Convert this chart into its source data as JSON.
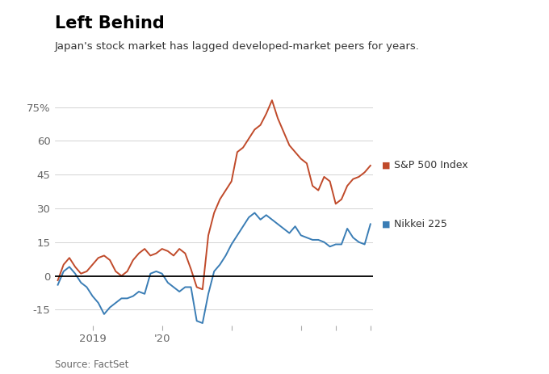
{
  "title": "Left Behind",
  "subtitle": "Japan's stock market has lagged developed-market peers for years.",
  "source": "Source: FactSet",
  "sp500_label": "S&P 500 Index",
  "nikkei_label": "Nikkei 225",
  "sp500_color": "#C04A2A",
  "nikkei_color": "#3A7DB5",
  "background_color": "#FFFFFF",
  "yticks": [
    -15,
    0,
    15,
    30,
    45,
    60,
    75
  ],
  "ylim": [
    -22,
    86
  ],
  "sp500_data": [
    -2,
    5,
    8,
    4,
    1,
    2,
    5,
    8,
    9,
    7,
    2,
    0,
    2,
    7,
    10,
    12,
    9,
    10,
    12,
    11,
    9,
    12,
    10,
    3,
    -5,
    -6,
    18,
    28,
    34,
    38,
    42,
    55,
    57,
    61,
    65,
    67,
    72,
    78,
    70,
    64,
    58,
    55,
    52,
    50,
    40,
    38,
    44,
    42,
    32,
    34,
    40,
    43,
    44,
    46,
    49
  ],
  "nikkei_data": [
    -4,
    2,
    4,
    1,
    -3,
    -5,
    -9,
    -12,
    -17,
    -14,
    -12,
    -10,
    -10,
    -9,
    -7,
    -8,
    1,
    2,
    1,
    -3,
    -5,
    -7,
    -5,
    -5,
    -20,
    -21,
    -8,
    2,
    5,
    9,
    14,
    18,
    22,
    26,
    28,
    25,
    27,
    25,
    23,
    21,
    19,
    22,
    18,
    17,
    16,
    16,
    15,
    13,
    14,
    14,
    21,
    17,
    15,
    14,
    23
  ],
  "n_points": 55,
  "x_tick_positions": [
    6,
    18,
    30,
    42,
    48,
    54
  ],
  "x_tick_labels": [
    "2019",
    "'20",
    "",
    "",
    "",
    ""
  ]
}
